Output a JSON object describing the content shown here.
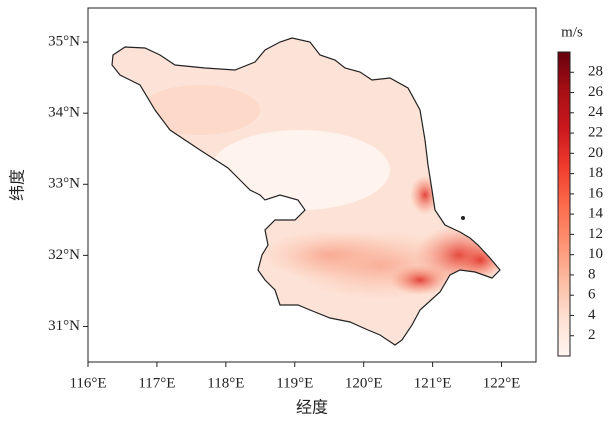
{
  "chart_data": {
    "type": "map",
    "x_label": "经度",
    "y_label": "纬度",
    "xlim": [
      116.0,
      122.5
    ],
    "ylim": [
      30.5,
      35.48
    ],
    "xticks": [
      {
        "value": 116,
        "label": "116°E"
      },
      {
        "value": 117,
        "label": "117°E"
      },
      {
        "value": 118,
        "label": "118°E"
      },
      {
        "value": 119,
        "label": "119°E"
      },
      {
        "value": 120,
        "label": "120°E"
      },
      {
        "value": 121,
        "label": "121°E"
      },
      {
        "value": 122,
        "label": "122°E"
      }
    ],
    "yticks": [
      {
        "value": 31,
        "label": "31°N"
      },
      {
        "value": 32,
        "label": "32°N"
      },
      {
        "value": 33,
        "label": "33°N"
      },
      {
        "value": 34,
        "label": "34°N"
      },
      {
        "value": 35,
        "label": "35°N"
      }
    ],
    "colorbar": {
      "label": "m/s",
      "lim": [
        0,
        30
      ],
      "ticks": [
        2,
        4,
        6,
        8,
        10,
        12,
        14,
        16,
        18,
        20,
        22,
        24,
        26,
        28
      ],
      "colors": [
        "#fff5f0",
        "#fee0d2",
        "#fcbba1",
        "#fc9272",
        "#fb6a4a",
        "#ef3b2c",
        "#cb181d",
        "#a50f15",
        "#67000d"
      ]
    }
  }
}
